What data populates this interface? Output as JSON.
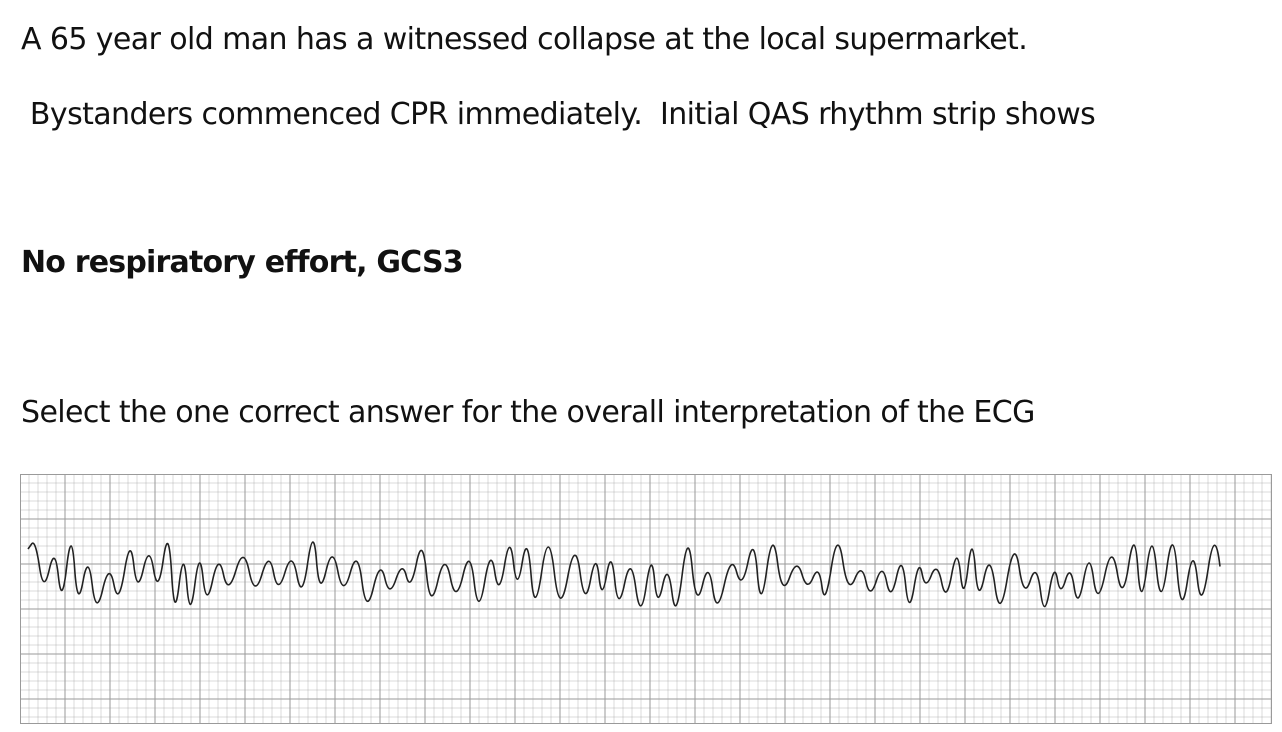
{
  "question": {
    "line1": "A 65 year old man has a witnessed collapse at the local supermarket.",
    "line2": " Bystanders commenced CPR immediately.  Initial QAS rhythm strip shows",
    "line3": "No respiratory effort, GCS3",
    "line4": "Select the one correct answer for the overall interpretation of the ECG"
  },
  "ecg_strip": {
    "icon": "ecg-rhythm-strip",
    "grid_color": "#9a9a9a",
    "trace_color": "#222222"
  }
}
